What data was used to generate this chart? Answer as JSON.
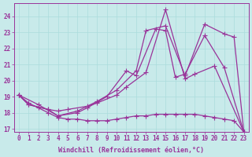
{
  "xlabel": "Windchill (Refroidissement éolien,°C)",
  "bg_color": "#c8eaea",
  "line_color": "#993399",
  "grid_color": "#aadddd",
  "xlim": [
    -0.5,
    23.5
  ],
  "ylim": [
    16.8,
    24.8
  ],
  "yticks": [
    17,
    18,
    19,
    20,
    21,
    22,
    23,
    24
  ],
  "xticks": [
    0,
    1,
    2,
    3,
    4,
    5,
    6,
    7,
    8,
    9,
    10,
    11,
    12,
    13,
    14,
    15,
    16,
    17,
    18,
    19,
    20,
    21,
    22,
    23
  ],
  "line1_x": [
    0,
    1,
    3,
    4,
    5,
    7,
    8,
    10,
    11,
    13,
    15,
    17,
    18,
    20,
    23
  ],
  "line1_y": [
    19.1,
    18.5,
    18.2,
    18.1,
    18.2,
    18.4,
    18.6,
    19.1,
    19.6,
    20.5,
    24.4,
    20.1,
    20.4,
    20.9,
    16.8
  ],
  "line2_x": [
    0,
    1,
    3,
    4,
    6,
    7,
    9,
    11,
    12,
    14,
    15,
    16,
    17,
    19,
    21,
    23
  ],
  "line2_y": [
    19.1,
    18.5,
    18.2,
    17.8,
    18.0,
    18.3,
    19.0,
    20.6,
    20.3,
    23.2,
    23.1,
    20.2,
    20.4,
    22.8,
    20.8,
    16.8
  ],
  "line3_x": [
    0,
    2,
    4,
    6,
    8,
    10,
    12,
    13,
    15,
    17,
    19,
    21,
    22,
    23
  ],
  "line3_y": [
    19.1,
    18.5,
    17.8,
    18.1,
    18.7,
    19.4,
    20.6,
    23.1,
    23.4,
    20.3,
    23.5,
    22.9,
    22.7,
    16.8
  ],
  "line4_x": [
    0,
    1,
    2,
    3,
    4,
    5,
    6,
    7,
    8,
    9,
    10,
    11,
    12,
    13,
    14,
    15,
    16,
    17,
    18,
    19,
    20,
    21,
    22,
    23
  ],
  "line4_y": [
    19.1,
    18.6,
    18.3,
    18.0,
    17.7,
    17.6,
    17.6,
    17.5,
    17.5,
    17.5,
    17.6,
    17.7,
    17.8,
    17.8,
    17.9,
    17.9,
    17.9,
    17.9,
    17.9,
    17.8,
    17.7,
    17.6,
    17.5,
    16.8
  ],
  "marker": "+",
  "markersize": 4.0,
  "linewidth": 0.9,
  "xlabel_fontsize": 6.0,
  "tick_fontsize": 5.5
}
